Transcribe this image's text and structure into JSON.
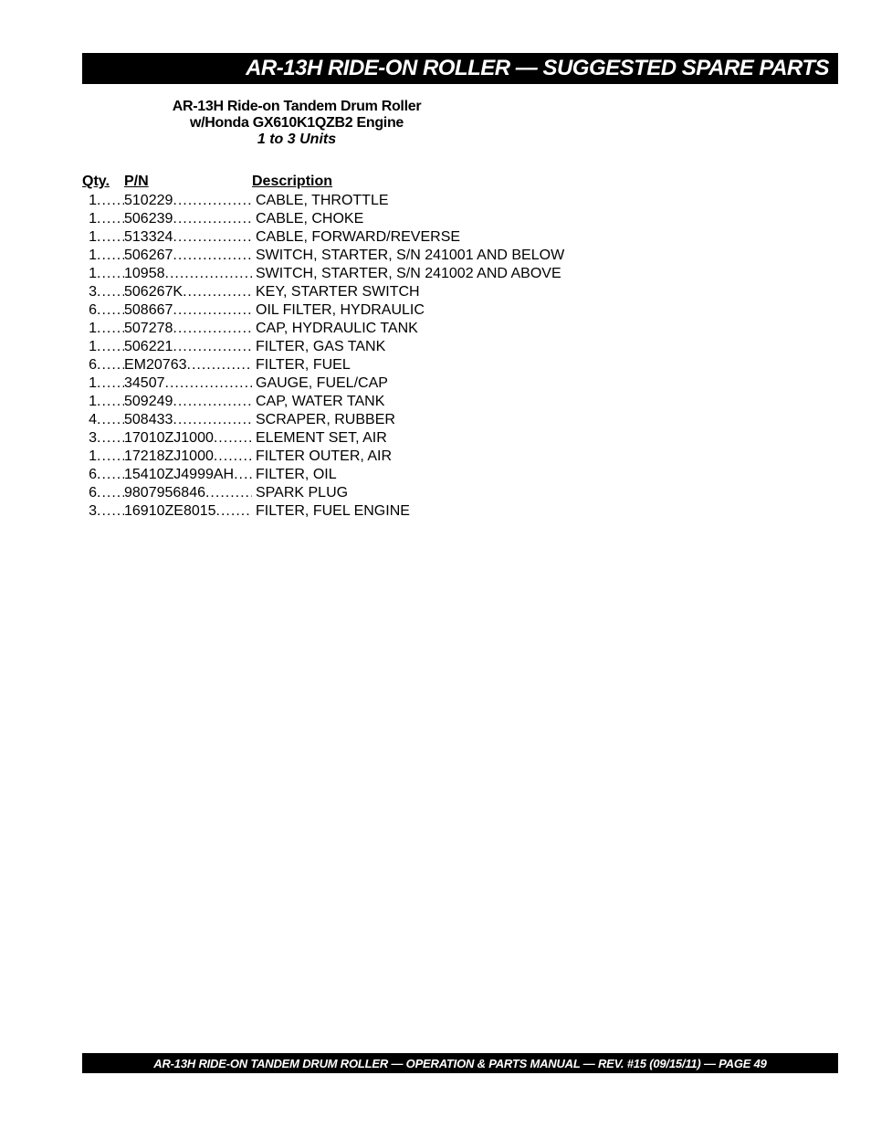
{
  "colors": {
    "bar_bg": "#000000",
    "bar_fg": "#ffffff",
    "page_bg": "#ffffff",
    "text": "#000000"
  },
  "header": {
    "title": "AR-13H RIDE-ON ROLLER — SUGGESTED SPARE PARTS"
  },
  "subtitle": {
    "line1": "AR-13H Ride-on Tandem Drum Roller",
    "line2": "w/Honda GX610K1QZB2 Engine",
    "line3": "1 to 3 Units"
  },
  "columns": {
    "qty": "Qty.",
    "pn": "P/N",
    "desc": "Description"
  },
  "rows": [
    {
      "qty": "1",
      "pn": "510229",
      "desc": "CABLE, THROTTLE"
    },
    {
      "qty": "1",
      "pn": "506239",
      "desc": "CABLE, CHOKE"
    },
    {
      "qty": "1",
      "pn": "513324",
      "desc": "CABLE, FORWARD/REVERSE"
    },
    {
      "qty": "1",
      "pn": "506267",
      "desc": "SWITCH, STARTER, S/N 241001 AND BELOW"
    },
    {
      "qty": "1",
      "pn": "10958",
      "desc": "SWITCH, STARTER, S/N 241002 AND ABOVE"
    },
    {
      "qty": "3",
      "pn": "506267K",
      "desc": "KEY, STARTER SWITCH"
    },
    {
      "qty": "6",
      "pn": "508667",
      "desc": "OIL FILTER, HYDRAULIC"
    },
    {
      "qty": "1",
      "pn": "507278",
      "desc": "CAP, HYDRAULIC TANK"
    },
    {
      "qty": "1",
      "pn": "506221",
      "desc": "FILTER, GAS TANK"
    },
    {
      "qty": "6",
      "pn": "EM20763",
      "desc": "FILTER, FUEL"
    },
    {
      "qty": "1",
      "pn": "34507",
      "desc": "GAUGE, FUEL/CAP"
    },
    {
      "qty": "1",
      "pn": "509249",
      "desc": "CAP, WATER TANK"
    },
    {
      "qty": "4",
      "pn": "508433",
      "desc": "SCRAPER, RUBBER"
    },
    {
      "qty": "3",
      "pn": "17010ZJ1000",
      "desc": "ELEMENT SET, AIR"
    },
    {
      "qty": "1",
      "pn": "17218ZJ1000",
      "desc": "FILTER OUTER, AIR"
    },
    {
      "qty": "6",
      "pn": "15410ZJ4999AH",
      "desc": "FILTER, OIL"
    },
    {
      "qty": "6",
      "pn": "9807956846",
      "desc": "SPARK PLUG"
    },
    {
      "qty": "3",
      "pn": "16910ZE8015",
      "desc": "FILTER, FUEL ENGINE"
    }
  ],
  "footer": {
    "text": "AR-13H RIDE-ON TANDEM DRUM ROLLER — OPERATION & PARTS MANUAL — REV. #15  (09/15/11) — PAGE 49"
  }
}
